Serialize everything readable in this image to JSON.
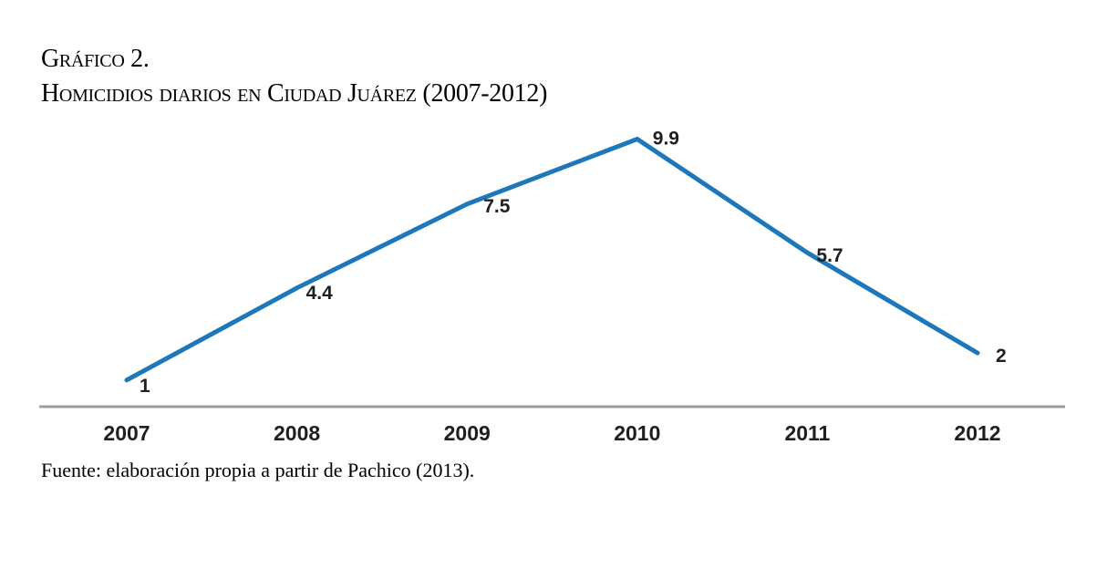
{
  "title": {
    "line1": "Gráfico 2.",
    "line2": "Homicidios diarios en Ciudad Juárez (2007-2012)"
  },
  "source_note": "Fuente: elaboración propia a partir de Pachico (2013).",
  "chart_data": {
    "type": "line",
    "title": "Homicidios diarios en Ciudad Juárez (2007-2012)",
    "categories": [
      "2007",
      "2008",
      "2009",
      "2010",
      "2011",
      "2012"
    ],
    "values": [
      1,
      4.4,
      7.5,
      9.9,
      5.7,
      2
    ],
    "data_labels": [
      "1",
      "4.4",
      "7.5",
      "9.9",
      "5.7",
      "2"
    ],
    "series_name": "Homicidios diarios",
    "xlabel": "",
    "ylabel": "",
    "ylim": [
      0,
      10.5
    ],
    "grid": false,
    "legend": "none",
    "y_axis_visible": false,
    "x_axis_visible": true,
    "line_color": "#1d78bb",
    "axis_color": "#9e9e9e",
    "label_color": "#1f1f1f"
  }
}
